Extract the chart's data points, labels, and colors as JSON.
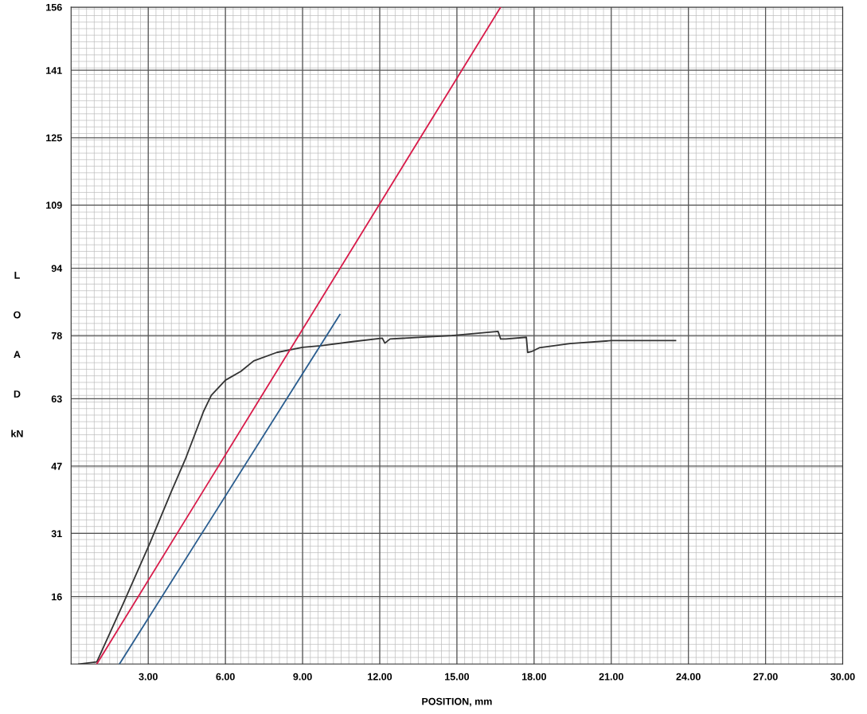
{
  "chart_data": {
    "type": "line",
    "xlabel": "POSITION, mm",
    "ylabel": "LOAD kN",
    "xlim": [
      0,
      30
    ],
    "ylim": [
      0,
      156
    ],
    "xticks": [
      {
        "value": 3,
        "label": "3.00"
      },
      {
        "value": 6,
        "label": "6.00"
      },
      {
        "value": 9,
        "label": "9.00"
      },
      {
        "value": 12,
        "label": "12.00"
      },
      {
        "value": 15,
        "label": "15.00"
      },
      {
        "value": 18,
        "label": "18.00"
      },
      {
        "value": 21,
        "label": "21.00"
      },
      {
        "value": 24,
        "label": "24.00"
      },
      {
        "value": 27,
        "label": "27.00"
      },
      {
        "value": 30,
        "label": "30.00"
      }
    ],
    "yticks": [
      16,
      31,
      47,
      63,
      78,
      94,
      109,
      125,
      141,
      156
    ],
    "grid": true,
    "legend": false,
    "marker": "none",
    "line_style": "solid",
    "series": [
      {
        "color": "#333333",
        "x": [
          0.3,
          1.0,
          2.0,
          3.05,
          3.9,
          4.44,
          5.15,
          5.45,
          6.0,
          6.6,
          7.1,
          8.0,
          9.0,
          9.7,
          11.0,
          12.1,
          12.2,
          12.4,
          14.8,
          16.6,
          16.7,
          16.9,
          17.7,
          17.75,
          17.9,
          18.2,
          19.4,
          21.0,
          23.5
        ],
        "values": [
          0,
          0.5,
          14,
          28.5,
          41,
          48.6,
          60,
          63.8,
          67.4,
          69.5,
          72,
          74,
          75.2,
          75.6,
          76.6,
          77.4,
          76.2,
          77.2,
          78.0,
          79,
          77.2,
          77.2,
          77.6,
          74,
          74.2,
          75.1,
          76.1,
          76.8,
          76.8
        ]
      },
      {
        "color": "#d81b4a",
        "x": [
          1.0,
          16.7
        ],
        "values": [
          0,
          156
        ]
      },
      {
        "color": "#2a5d8f",
        "x": [
          1.88,
          10.45
        ],
        "values": [
          0,
          83
        ]
      }
    ]
  }
}
